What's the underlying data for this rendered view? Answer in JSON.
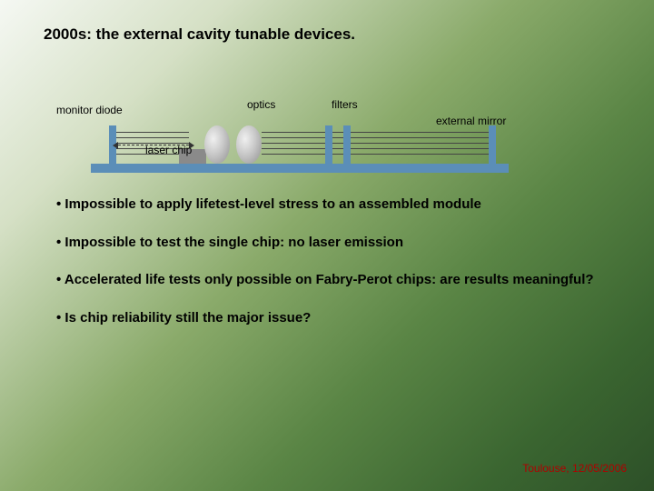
{
  "title": "2000s: the external cavity tunable devices.",
  "diagram": {
    "labels": {
      "monitor": "monitor diode",
      "optics": "optics",
      "filters": "filters",
      "mirror": "external mirror",
      "laser": "laser chip"
    },
    "colors": {
      "bars": "#5b8eb8",
      "baseplate": "#5b8eb8",
      "laserchip": "#8a8a8a",
      "beam": "#444444"
    }
  },
  "bullets": [
    "• Impossible to apply lifetest-level stress to an assembled module",
    "• Impossible to test the single chip: no laser emission",
    "• Accelerated life tests only possible on Fabry-Perot chips: are results meaningful?",
    "• Is chip reliability still the major issue?"
  ],
  "footer": "Toulouse, 12/05/2006",
  "footer_color": "#b00000"
}
